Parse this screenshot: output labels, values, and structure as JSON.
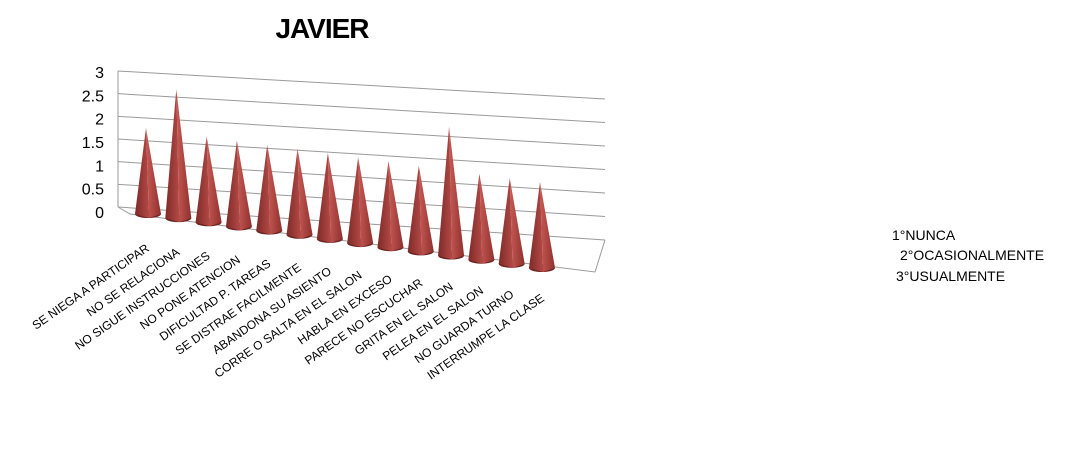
{
  "chart_data": {
    "type": "bar",
    "style": "3d-cone",
    "title": "JAVIER",
    "categories": [
      "SE NIEGA A PARTICIPAR",
      "NO SE RELACIONA",
      "NO SIGUE INSTRUCCIONES",
      "NO PONE ATENCION",
      "DIFICULTAD P. TAREAS",
      "SE DISTRAE FACILMENTE",
      "ABANDONA SU ASIENTO",
      "CORRE O SALTA EN EL SALON",
      "HABLA EN EXCESO",
      "PARECE NO ESCUCHAR",
      "GRITA EN EL SALON",
      "PELEA EN EL SALON",
      "NO GUARDA TURNO",
      "INTERRUMPE LA CLASE"
    ],
    "values": [
      2,
      3,
      2,
      2,
      2,
      2,
      2,
      2,
      2,
      2,
      3,
      2,
      2,
      2
    ],
    "ylim": [
      0,
      3
    ],
    "yticks": [
      "0",
      "0.5",
      "1",
      "1.5",
      "2",
      "2.5",
      "3"
    ],
    "grid": true,
    "bar_color": "#a8413e",
    "notes": [
      "1°NUNCA",
      "2°OCASIONALMENTE",
      "3°USUALMENTE"
    ]
  }
}
